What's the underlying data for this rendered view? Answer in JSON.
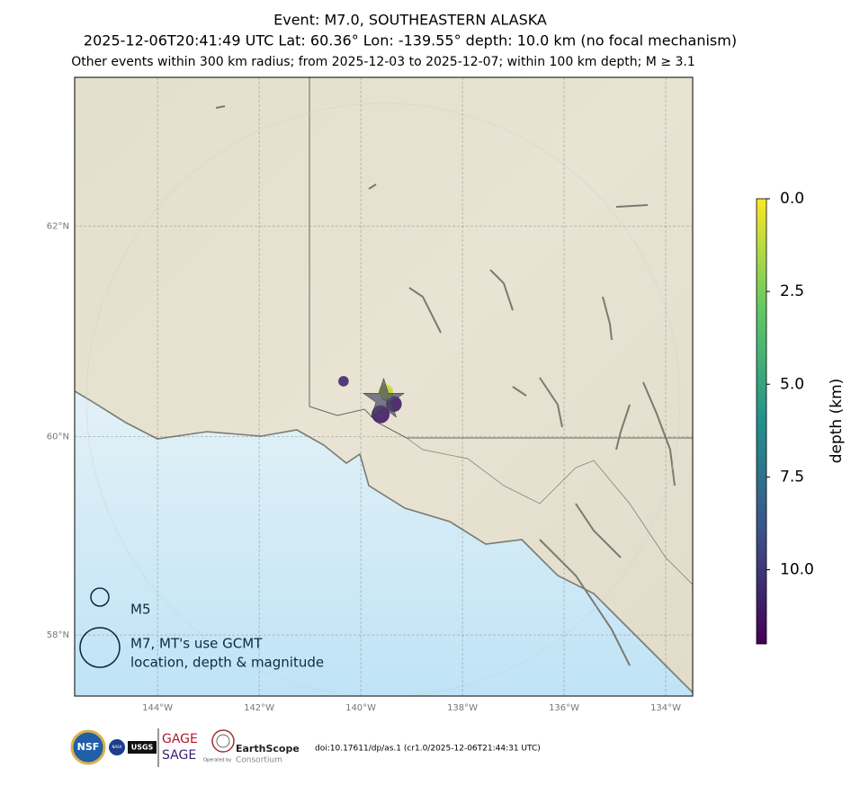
{
  "header": {
    "title": "Event: M7.0, SOUTHEASTERN ALASKA",
    "line2": "2025-12-06T20:41:49 UTC Lat: 60.36° Lon: -139.55° depth: 10.0 km (no focal mechanism)",
    "line3": "Other events within 300 km radius; from 2025-12-03 to 2025-12-07; within 100 km depth; M ≥ 3.1"
  },
  "map": {
    "type": "scatter",
    "xlim": [
      -145.63,
      -133.47
    ],
    "ylim": [
      57.36,
      63.34
    ],
    "xticks": [
      {
        "value": -144,
        "label": "144°W"
      },
      {
        "value": -142,
        "label": "142°W"
      },
      {
        "value": -140,
        "label": "140°W"
      },
      {
        "value": -138,
        "label": "138°W"
      },
      {
        "value": -136,
        "label": "136°W"
      },
      {
        "value": -134,
        "label": "134°W"
      }
    ],
    "yticks": [
      {
        "value": 58,
        "label": "58°N"
      },
      {
        "value": 60,
        "label": "60°N"
      },
      {
        "value": 62,
        "label": "62°N"
      }
    ],
    "mainshock": {
      "lon": -139.55,
      "lat": 60.36
    },
    "events": {
      "lon": [
        -140.34,
        -139.61,
        -139.35,
        -139.49,
        -139.51
      ],
      "lat": [
        60.54,
        60.22,
        60.32,
        60.41,
        60.44
      ],
      "depth": [
        10.5,
        11.0,
        11.0,
        5.0,
        1.0
      ],
      "mag": [
        4.3,
        5.0,
        4.8,
        4.5,
        4.7
      ]
    },
    "colorbar": {
      "label": "depth (km)",
      "lim": [
        0,
        12
      ],
      "ticks": [
        {
          "value": 0,
          "label": "0.0"
        },
        {
          "value": 2.5,
          "label": "2.5"
        },
        {
          "value": 5,
          "label": "5.0"
        },
        {
          "value": 7.5,
          "label": "7.5"
        },
        {
          "value": 10,
          "label": "10.0"
        }
      ]
    },
    "legend": [
      {
        "label": "M5",
        "mag": 5
      },
      {
        "label": "M7, MT's use GCMT",
        "label2": "location, depth & magnitude",
        "mag": 7
      }
    ]
  },
  "footer": {
    "nsf": "NSF",
    "nasa": "NASA",
    "usgs": "USGS",
    "gage": "GAGE",
    "sage": "SAGE",
    "earthscope": "EarthScope",
    "consortium": "Consortium",
    "operated": "Operated by",
    "doi": "doi:10.17611/dp/as.1 (cr1.0/2025-12-06T21:44:31 UTC)"
  }
}
